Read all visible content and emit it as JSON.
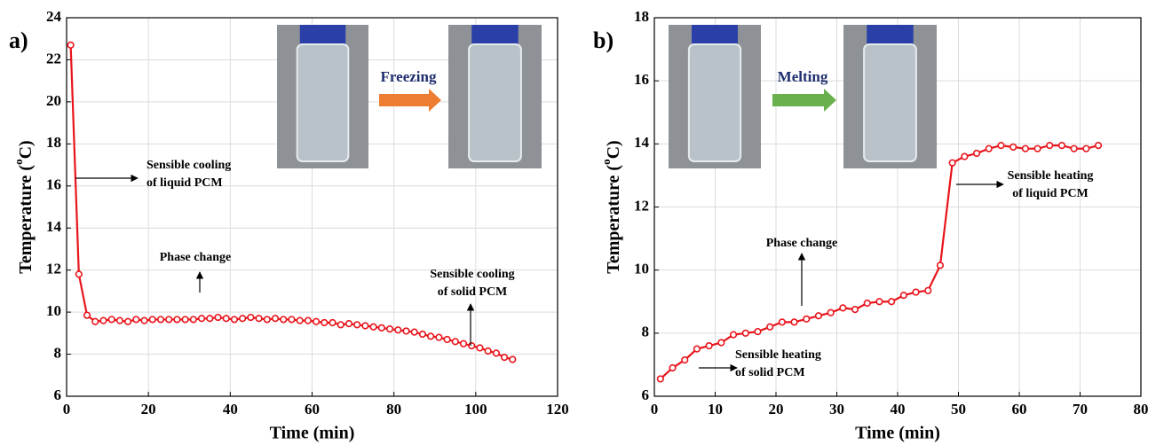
{
  "chart_data": [
    {
      "type": "line",
      "panel_label": "a)",
      "x_label": "Time (min)",
      "y_label_parts": [
        "Temperature (",
        "o",
        "C)"
      ],
      "transition_label": "Freezing",
      "x": [
        1,
        3,
        5,
        7,
        9,
        11,
        13,
        15,
        17,
        19,
        21,
        23,
        25,
        27,
        29,
        31,
        33,
        35,
        37,
        39,
        41,
        43,
        45,
        47,
        49,
        51,
        53,
        55,
        57,
        59,
        61,
        63,
        65,
        67,
        69,
        71,
        73,
        75,
        77,
        79,
        81,
        83,
        85,
        87,
        89,
        91,
        93,
        95,
        97,
        99,
        101,
        103,
        105,
        107,
        109
      ],
      "values": [
        22.7,
        11.8,
        9.85,
        9.55,
        9.6,
        9.65,
        9.6,
        9.55,
        9.65,
        9.6,
        9.65,
        9.65,
        9.65,
        9.65,
        9.65,
        9.65,
        9.7,
        9.7,
        9.75,
        9.7,
        9.65,
        9.7,
        9.75,
        9.7,
        9.65,
        9.7,
        9.65,
        9.65,
        9.6,
        9.6,
        9.55,
        9.5,
        9.5,
        9.4,
        9.45,
        9.4,
        9.35,
        9.3,
        9.25,
        9.2,
        9.15,
        9.1,
        9.05,
        8.95,
        8.85,
        8.8,
        8.7,
        8.6,
        8.5,
        8.4,
        8.3,
        8.15,
        8.05,
        7.85,
        7.75
      ],
      "color": "#e8141b",
      "xlim": [
        0,
        120
      ],
      "xticks": [
        0,
        20,
        40,
        60,
        80,
        100,
        120
      ],
      "ylim": [
        6,
        24
      ],
      "yticks": [
        6,
        8,
        10,
        12,
        14,
        16,
        18,
        20,
        22,
        24
      ],
      "grid": true,
      "annotations": [
        {
          "lines": [
            "Sensible cooling",
            "of liquid PCM"
          ]
        },
        {
          "lines": [
            "Phase change"
          ]
        },
        {
          "lines": [
            "Sensible cooling",
            "of solid PCM"
          ]
        }
      ]
    },
    {
      "type": "line",
      "panel_label": "b)",
      "x_label": "Time (min)",
      "y_label_parts": [
        "Temperature (",
        "o",
        "C)"
      ],
      "transition_label": "Melting",
      "x": [
        1,
        3,
        5,
        7,
        9,
        11,
        13,
        15,
        17,
        19,
        21,
        23,
        25,
        27,
        29,
        31,
        33,
        35,
        37,
        39,
        41,
        43,
        45,
        47,
        49,
        51,
        53,
        55,
        57,
        59,
        61,
        63,
        65,
        67,
        69,
        71,
        73
      ],
      "values": [
        6.55,
        6.9,
        7.15,
        7.5,
        7.6,
        7.7,
        7.95,
        8.0,
        8.05,
        8.2,
        8.35,
        8.35,
        8.45,
        8.55,
        8.65,
        8.8,
        8.75,
        8.95,
        9.0,
        9.0,
        9.2,
        9.3,
        9.35,
        10.15,
        13.4,
        13.6,
        13.7,
        13.85,
        13.95,
        13.9,
        13.85,
        13.85,
        13.95,
        13.95,
        13.85,
        13.85,
        13.95
      ],
      "color": "#e8141b",
      "xlim": [
        0,
        80
      ],
      "xticks": [
        0,
        10,
        20,
        30,
        40,
        50,
        60,
        70,
        80
      ],
      "ylim": [
        6,
        18
      ],
      "yticks": [
        6,
        8,
        10,
        12,
        14,
        16,
        18
      ],
      "grid": true,
      "annotations": [
        {
          "lines": [
            "Sensible heating",
            "of solid PCM"
          ]
        },
        {
          "lines": [
            "Phase change"
          ]
        },
        {
          "lines": [
            "Sensible heating",
            "of liquid PCM"
          ]
        }
      ]
    }
  ]
}
